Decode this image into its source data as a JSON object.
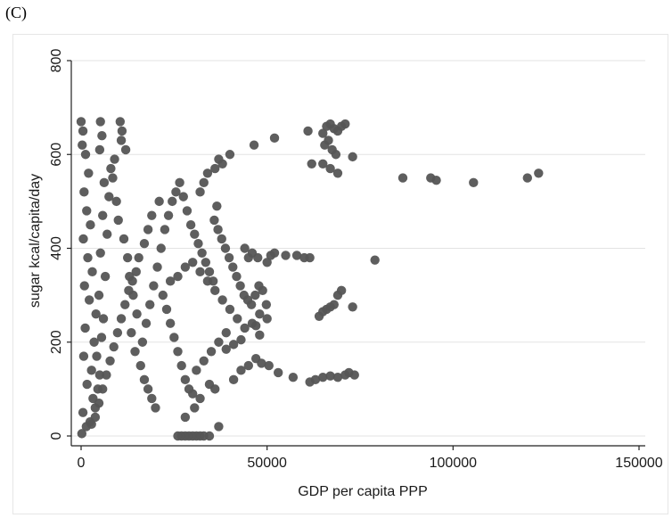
{
  "panel_label": "(C)",
  "chart_data": {
    "type": "scatter",
    "title": "",
    "xlabel": "GDP per capita PPP",
    "ylabel": "sugar kcal/capita/day",
    "xlim": [
      0,
      150000
    ],
    "ylim": [
      0,
      800
    ],
    "xticks": [
      0,
      50000,
      100000,
      150000
    ],
    "yticks": [
      0,
      200,
      400,
      600,
      800
    ],
    "grid": true,
    "marker_color": "#555555",
    "points": [
      [
        0,
        670
      ],
      [
        500,
        650
      ],
      [
        300,
        620
      ],
      [
        1200,
        600
      ],
      [
        2000,
        560
      ],
      [
        800,
        520
      ],
      [
        1500,
        480
      ],
      [
        2500,
        450
      ],
      [
        600,
        420
      ],
      [
        1800,
        380
      ],
      [
        3000,
        350
      ],
      [
        900,
        320
      ],
      [
        2200,
        290
      ],
      [
        4000,
        260
      ],
      [
        1100,
        230
      ],
      [
        3500,
        200
      ],
      [
        700,
        170
      ],
      [
        2800,
        140
      ],
      [
        1600,
        110
      ],
      [
        3200,
        80
      ],
      [
        500,
        50
      ],
      [
        1400,
        20
      ],
      [
        200,
        5
      ],
      [
        2400,
        30
      ],
      [
        3800,
        60
      ],
      [
        4500,
        100
      ],
      [
        5000,
        130
      ],
      [
        4200,
        170
      ],
      [
        5500,
        210
      ],
      [
        6000,
        250
      ],
      [
        4800,
        300
      ],
      [
        6500,
        340
      ],
      [
        5200,
        390
      ],
      [
        7000,
        430
      ],
      [
        5800,
        470
      ],
      [
        7500,
        510
      ],
      [
        6200,
        540
      ],
      [
        8000,
        570
      ],
      [
        5000,
        610
      ],
      [
        5600,
        640
      ],
      [
        5200,
        670
      ],
      [
        10500,
        670
      ],
      [
        11000,
        650
      ],
      [
        10800,
        630
      ],
      [
        12000,
        610
      ],
      [
        9000,
        590
      ],
      [
        8500,
        550
      ],
      [
        9500,
        500
      ],
      [
        10000,
        460
      ],
      [
        11500,
        420
      ],
      [
        12500,
        380
      ],
      [
        13000,
        340
      ],
      [
        14000,
        300
      ],
      [
        15000,
        260
      ],
      [
        13500,
        220
      ],
      [
        14500,
        180
      ],
      [
        16000,
        150
      ],
      [
        17000,
        120
      ],
      [
        18000,
        100
      ],
      [
        19000,
        80
      ],
      [
        20000,
        60
      ],
      [
        16500,
        200
      ],
      [
        17500,
        240
      ],
      [
        18500,
        280
      ],
      [
        19500,
        320
      ],
      [
        20500,
        360
      ],
      [
        21500,
        400
      ],
      [
        22500,
        440
      ],
      [
        23500,
        470
      ],
      [
        24500,
        500
      ],
      [
        25500,
        520
      ],
      [
        26500,
        540
      ],
      [
        27500,
        510
      ],
      [
        28500,
        480
      ],
      [
        29500,
        450
      ],
      [
        30500,
        430
      ],
      [
        31500,
        410
      ],
      [
        32500,
        390
      ],
      [
        33500,
        370
      ],
      [
        34500,
        350
      ],
      [
        35500,
        330
      ],
      [
        22000,
        300
      ],
      [
        23000,
        270
      ],
      [
        24000,
        240
      ],
      [
        25000,
        210
      ],
      [
        26000,
        180
      ],
      [
        27000,
        150
      ],
      [
        28000,
        120
      ],
      [
        29000,
        100
      ],
      [
        30000,
        90
      ],
      [
        21000,
        500
      ],
      [
        19000,
        470
      ],
      [
        18000,
        440
      ],
      [
        17000,
        410
      ],
      [
        15500,
        380
      ],
      [
        14800,
        350
      ],
      [
        13800,
        330
      ],
      [
        12800,
        310
      ],
      [
        11800,
        280
      ],
      [
        10800,
        250
      ],
      [
        9800,
        220
      ],
      [
        8800,
        190
      ],
      [
        7800,
        160
      ],
      [
        6800,
        130
      ],
      [
        5800,
        100
      ],
      [
        4800,
        70
      ],
      [
        3800,
        40
      ],
      [
        2800,
        25
      ],
      [
        36000,
        570
      ],
      [
        37000,
        590
      ],
      [
        38000,
        580
      ],
      [
        40000,
        600
      ],
      [
        34000,
        560
      ],
      [
        33000,
        540
      ],
      [
        32000,
        520
      ],
      [
        36500,
        490
      ],
      [
        35800,
        460
      ],
      [
        36800,
        440
      ],
      [
        37800,
        420
      ],
      [
        38800,
        400
      ],
      [
        39800,
        380
      ],
      [
        40800,
        360
      ],
      [
        41800,
        340
      ],
      [
        42800,
        320
      ],
      [
        43800,
        300
      ],
      [
        44800,
        290
      ],
      [
        45800,
        280
      ],
      [
        46800,
        300
      ],
      [
        47800,
        320
      ],
      [
        48800,
        310
      ],
      [
        49800,
        280
      ],
      [
        50000,
        250
      ],
      [
        48000,
        260
      ],
      [
        46000,
        240
      ],
      [
        44000,
        230
      ],
      [
        42000,
        250
      ],
      [
        40000,
        270
      ],
      [
        38000,
        290
      ],
      [
        36000,
        310
      ],
      [
        34000,
        330
      ],
      [
        32000,
        350
      ],
      [
        30000,
        370
      ],
      [
        28000,
        360
      ],
      [
        26000,
        340
      ],
      [
        24000,
        330
      ],
      [
        39000,
        220
      ],
      [
        37000,
        200
      ],
      [
        35000,
        180
      ],
      [
        33000,
        160
      ],
      [
        31000,
        140
      ],
      [
        41000,
        120
      ],
      [
        43000,
        140
      ],
      [
        45000,
        150
      ],
      [
        47000,
        165
      ],
      [
        48500,
        155
      ],
      [
        50500,
        150
      ],
      [
        53000,
        135
      ],
      [
        57000,
        125
      ],
      [
        61500,
        115
      ],
      [
        63000,
        120
      ],
      [
        65000,
        125
      ],
      [
        67000,
        128
      ],
      [
        69000,
        125
      ],
      [
        71000,
        130
      ],
      [
        72000,
        135
      ],
      [
        73500,
        130
      ],
      [
        34500,
        110
      ],
      [
        36000,
        100
      ],
      [
        32000,
        80
      ],
      [
        30500,
        60
      ],
      [
        28000,
        40
      ],
      [
        26000,
        0
      ],
      [
        27000,
        0
      ],
      [
        28000,
        0
      ],
      [
        29000,
        0
      ],
      [
        30000,
        0
      ],
      [
        31000,
        0
      ],
      [
        32000,
        0
      ],
      [
        33000,
        0
      ],
      [
        34500,
        0
      ],
      [
        37000,
        20
      ],
      [
        44000,
        400
      ],
      [
        45000,
        380
      ],
      [
        46000,
        390
      ],
      [
        47500,
        380
      ],
      [
        50000,
        370
      ],
      [
        51000,
        385
      ],
      [
        52000,
        390
      ],
      [
        55000,
        385
      ],
      [
        58000,
        385
      ],
      [
        60000,
        380
      ],
      [
        61500,
        380
      ],
      [
        46500,
        620
      ],
      [
        52000,
        635
      ],
      [
        61000,
        650
      ],
      [
        62000,
        580
      ],
      [
        65000,
        645
      ],
      [
        66000,
        660
      ],
      [
        67000,
        665
      ],
      [
        68000,
        655
      ],
      [
        69000,
        650
      ],
      [
        70000,
        660
      ],
      [
        71000,
        665
      ],
      [
        65500,
        620
      ],
      [
        66500,
        630
      ],
      [
        67500,
        610
      ],
      [
        68500,
        600
      ],
      [
        65000,
        580
      ],
      [
        67000,
        570
      ],
      [
        69000,
        560
      ],
      [
        73000,
        595
      ],
      [
        64000,
        255
      ],
      [
        65000,
        265
      ],
      [
        66000,
        270
      ],
      [
        67000,
        275
      ],
      [
        68000,
        280
      ],
      [
        69000,
        300
      ],
      [
        70000,
        310
      ],
      [
        73000,
        275
      ],
      [
        79000,
        375
      ],
      [
        86500,
        550
      ],
      [
        94000,
        550
      ],
      [
        95500,
        545
      ],
      [
        105500,
        540
      ],
      [
        120000,
        550
      ],
      [
        123000,
        560
      ],
      [
        47000,
        235
      ],
      [
        48000,
        215
      ],
      [
        43000,
        205
      ],
      [
        41000,
        195
      ],
      [
        39000,
        185
      ]
    ]
  }
}
